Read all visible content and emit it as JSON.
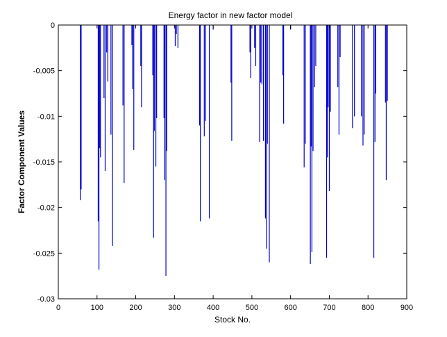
{
  "chart_data": {
    "type": "bar",
    "title": "Energy factor in new factor model",
    "xlabel": "Stock No.",
    "ylabel": "Factor Component Values",
    "xlim": [
      0,
      900
    ],
    "ylim": [
      -0.03,
      0
    ],
    "x_ticks": [
      0,
      100,
      200,
      300,
      400,
      500,
      600,
      700,
      800,
      900
    ],
    "y_ticks": [
      0,
      -0.005,
      -0.01,
      -0.015,
      -0.02,
      -0.025,
      -0.03
    ],
    "y_tick_labels": [
      "0",
      "-0.005",
      "-0.01",
      "-0.015",
      "-0.02",
      "-0.025",
      "-0.03"
    ],
    "grid": false,
    "series": [
      {
        "color": "#0000cc",
        "x": [
          57,
          59,
          103,
          105,
          107,
          109,
          118,
          121,
          125,
          128,
          136,
          140,
          167,
          170,
          190,
          192,
          195,
          213,
          215,
          244,
          246,
          248,
          252,
          254,
          273,
          275,
          278,
          280,
          302,
          305,
          309,
          365,
          367,
          377,
          380,
          390,
          400,
          446,
          448,
          495,
          497,
          507,
          510,
          520,
          523,
          526,
          530,
          535,
          538,
          540,
          545,
          580,
          582,
          600,
          635,
          638,
          651,
          653,
          655,
          658,
          662,
          665,
          693,
          695,
          697,
          700,
          703,
          722,
          725,
          728,
          760,
          765,
          783,
          787,
          790,
          815,
          818,
          820,
          845,
          847,
          850
        ],
        "values": [
          -0.0192,
          -0.018,
          -0.0215,
          -0.0268,
          -0.0135,
          -0.0145,
          -0.008,
          -0.016,
          -0.003,
          -0.0062,
          -0.012,
          -0.0242,
          -0.0088,
          -0.0173,
          -0.0022,
          -0.007,
          -0.0137,
          -0.0045,
          -0.009,
          -0.0055,
          -0.0233,
          -0.0116,
          -0.0155,
          -0.0102,
          -0.0102,
          -0.017,
          -0.0275,
          -0.0138,
          -0.0023,
          -0.001,
          -0.0025,
          -0.011,
          -0.0215,
          -0.0122,
          -0.0105,
          -0.0212,
          -0.0005,
          -0.0063,
          -0.0127,
          -0.003,
          -0.0058,
          -0.0025,
          -0.0045,
          -0.0128,
          -0.0063,
          -0.0065,
          -0.0127,
          -0.0212,
          -0.0245,
          -0.013,
          -0.026,
          -0.0055,
          -0.0108,
          -0.0005,
          -0.0156,
          -0.013,
          -0.0262,
          -0.0133,
          -0.0249,
          -0.0138,
          -0.0068,
          -0.0045,
          -0.0255,
          -0.0145,
          -0.009,
          -0.0182,
          -0.0095,
          -0.0068,
          -0.012,
          -0.0035,
          -0.0113,
          -0.01,
          -0.01,
          -0.0132,
          -0.012,
          -0.0255,
          -0.0128,
          -0.0075,
          -0.0085,
          -0.017,
          -0.0083
        ]
      }
    ]
  }
}
